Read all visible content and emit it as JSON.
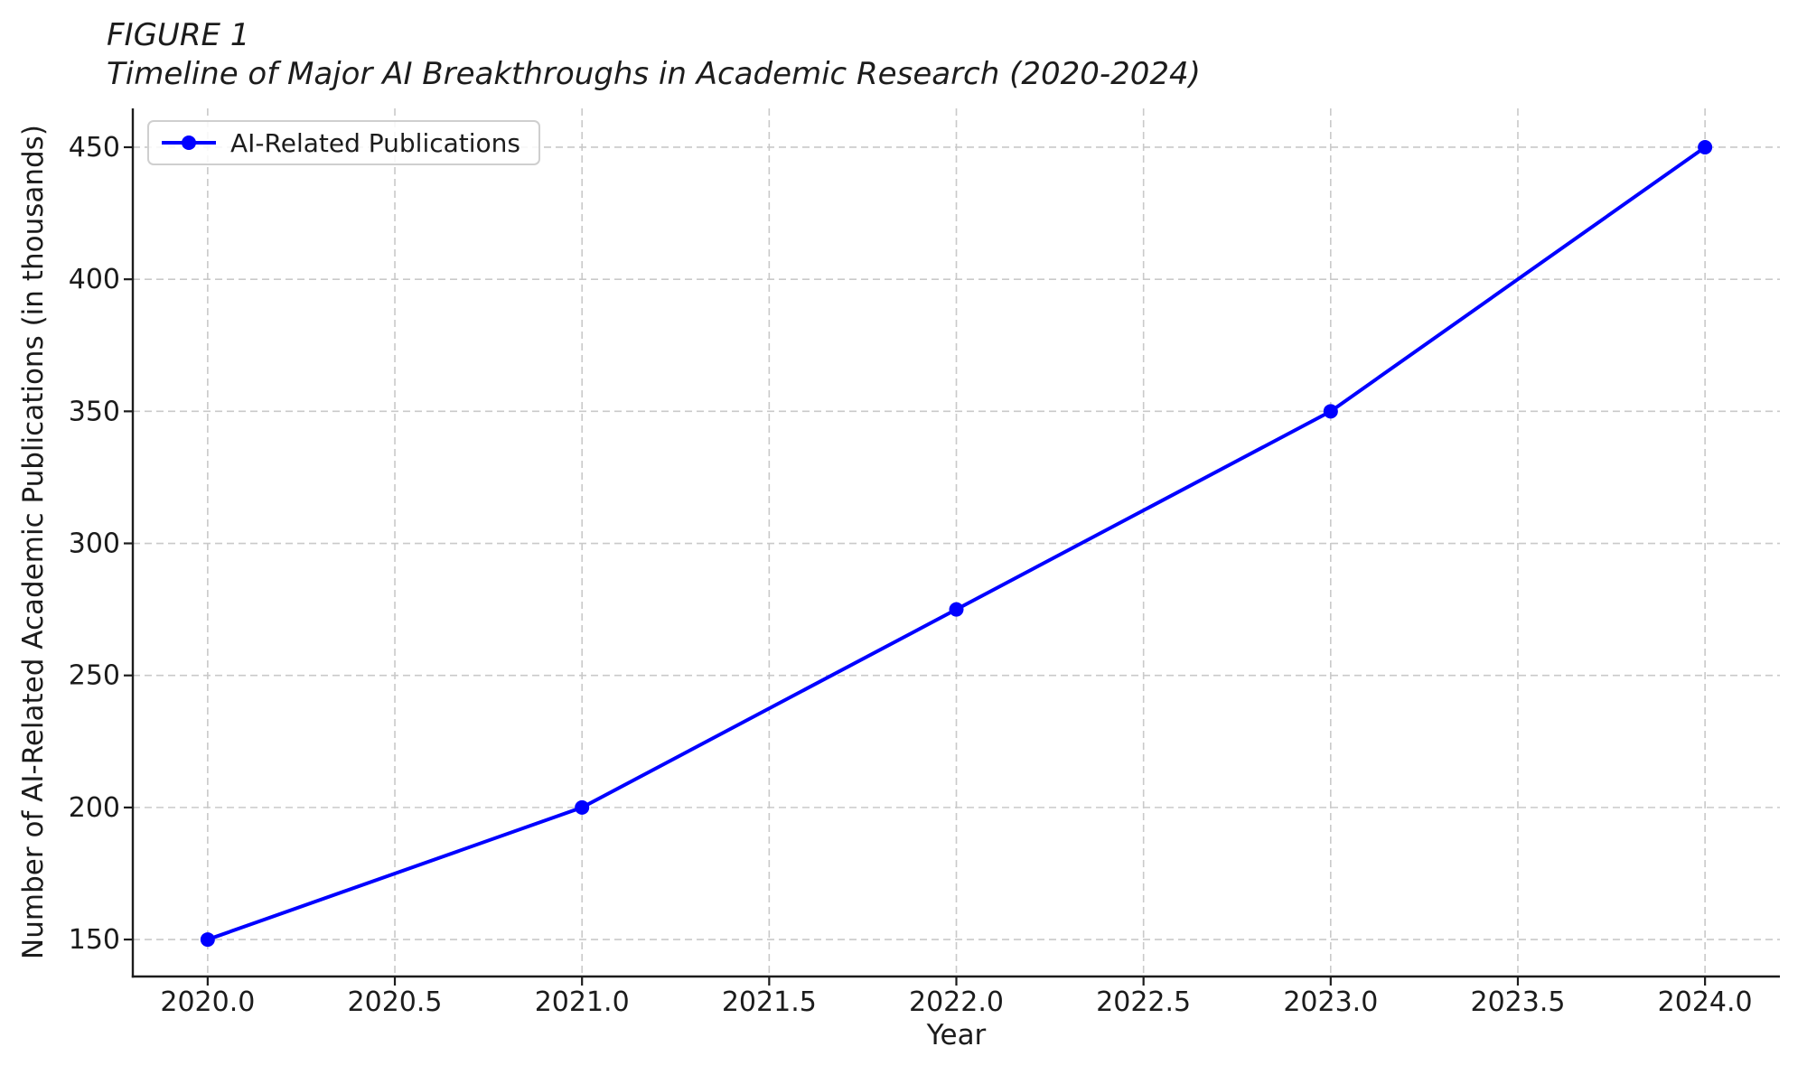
{
  "chart_data": {
    "type": "line",
    "title_line1": "FIGURE 1",
    "title_line2": "Timeline of Major AI Breakthroughs in Academic Research (2020-2024)",
    "xlabel": "Year",
    "ylabel": "Number of AI-Related Academic Publications (in thousands)",
    "x": [
      2020,
      2021,
      2022,
      2023,
      2024
    ],
    "series": [
      {
        "name": "AI-Related Publications",
        "values": [
          150,
          200,
          275,
          350,
          450
        ]
      }
    ],
    "xlim": [
      2019.8,
      2024.2
    ],
    "ylim": [
      136,
      464.7
    ],
    "xticks": [
      2020.0,
      2020.5,
      2021.0,
      2021.5,
      2022.0,
      2022.5,
      2023.0,
      2023.5,
      2024.0
    ],
    "xtick_labels": [
      "2020.0",
      "2020.5",
      "2021.0",
      "2021.5",
      "2022.0",
      "2022.5",
      "2023.0",
      "2023.5",
      "2024.0"
    ],
    "yticks": [
      150,
      200,
      250,
      300,
      350,
      400,
      450
    ],
    "ytick_labels": [
      "150",
      "200",
      "250",
      "300",
      "350",
      "400",
      "450"
    ],
    "grid": true,
    "grid_style": "dashed",
    "legend_position": "upper left",
    "colors": {
      "line": "#0000ff",
      "marker": "#0000ff",
      "grid": "#c9c9c9",
      "spine": "#1c1c1c",
      "text": "#1c1c1c",
      "legend_border": "#cfcfcf"
    }
  }
}
